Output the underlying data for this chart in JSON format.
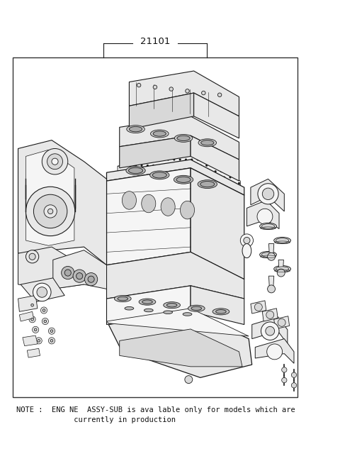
{
  "background_color": "#ffffff",
  "diagram_number": "21101",
  "note_line1": "NOTE :  ENG NE  ASSY-SUB is ava lable only for models which are",
  "note_line2": "             currently in production",
  "lc": "#1a1a1a",
  "fc_light": "#f5f5f5",
  "fc_mid": "#e8e8e8",
  "fc_dark": "#d8d8d8",
  "note_fontsize": 7.5,
  "label_fontsize": 9.5
}
